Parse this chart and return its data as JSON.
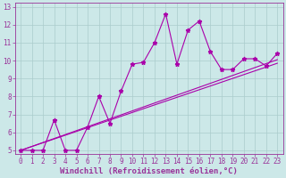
{
  "xlabel": "Windchill (Refroidissement éolien,°C)",
  "xlim": [
    -0.5,
    23.5
  ],
  "ylim": [
    4.8,
    13.2
  ],
  "xticks": [
    0,
    1,
    2,
    3,
    4,
    5,
    6,
    7,
    8,
    9,
    10,
    11,
    12,
    13,
    14,
    15,
    16,
    17,
    18,
    19,
    20,
    21,
    22,
    23
  ],
  "yticks": [
    5,
    6,
    7,
    8,
    9,
    10,
    11,
    12,
    13
  ],
  "bg_color": "#cce8e8",
  "grid_color": "#aacccc",
  "line_color": "#aa00aa",
  "line1_x": [
    0,
    1,
    2,
    3,
    4,
    5,
    6,
    7,
    8,
    9,
    10,
    11,
    12,
    13,
    14,
    15,
    16,
    17,
    18,
    19,
    20,
    21,
    22,
    23
  ],
  "line1_y": [
    5.0,
    5.0,
    5.0,
    6.7,
    5.0,
    5.0,
    6.3,
    8.0,
    6.5,
    8.3,
    9.8,
    9.9,
    11.0,
    12.6,
    9.8,
    11.7,
    12.2,
    10.5,
    9.5,
    9.5,
    10.1,
    10.1,
    9.7,
    10.4
  ],
  "line2_x": [
    0,
    23
  ],
  "line2_y": [
    5.0,
    9.85
  ],
  "line3_x": [
    0,
    23
  ],
  "line3_y": [
    5.0,
    10.05
  ],
  "marker": "*",
  "markersize": 3.5,
  "linewidth": 0.8,
  "font_color": "#993399",
  "tick_fontsize": 5.5,
  "xlabel_fontsize": 6.5
}
